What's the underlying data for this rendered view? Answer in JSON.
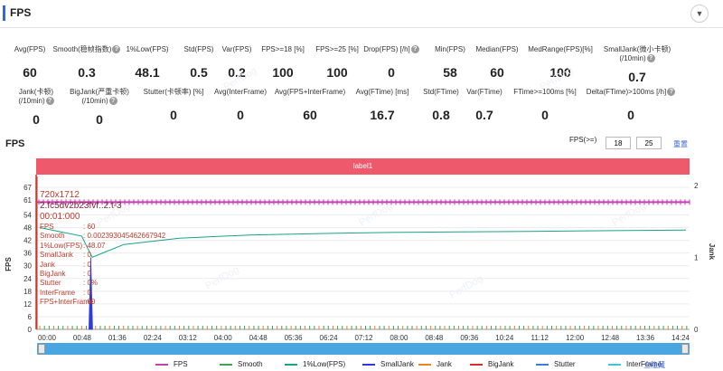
{
  "header": {
    "title": "FPS",
    "collapse_icon": "chevron-down-icon"
  },
  "metrics_row1": [
    {
      "label": "Avg(FPS)",
      "value": "60",
      "help": false
    },
    {
      "label": "Smooth(稳帧指数)",
      "value": "0.3",
      "help": true
    },
    {
      "label": "1%Low(FPS)",
      "value": "48.1",
      "help": false
    },
    {
      "label": "Std(FPS)",
      "value": "0.5",
      "help": false
    },
    {
      "label": "Var(FPS)",
      "value": "0.2",
      "help": false
    },
    {
      "label": "FPS>=18 [%]",
      "value": "100",
      "help": false
    },
    {
      "label": "FPS>=25 [%]",
      "value": "100",
      "help": false
    },
    {
      "label": "Drop(FPS) [/h]",
      "value": "0",
      "help": true
    },
    {
      "label": "Min(FPS)",
      "value": "58",
      "help": false
    },
    {
      "label": "Median(FPS)",
      "value": "60",
      "help": false
    },
    {
      "label": "MedRange(FPS)[%]",
      "value": "100",
      "help": false
    },
    {
      "label": "SmallJank(微小卡顿)",
      "label2": "(/10min)",
      "value": "0.7",
      "help": true
    }
  ],
  "metrics_row2": [
    {
      "label": "Jank(卡顿)",
      "label2": "(/10min)",
      "value": "0",
      "help": true
    },
    {
      "label": "BigJank(严重卡顿)",
      "label2": "(/10min)",
      "value": "0",
      "help": true
    },
    {
      "label": "Stutter(卡顿率) [%]",
      "value": "0",
      "help": false
    },
    {
      "label": "Avg(InterFrame)",
      "value": "0",
      "help": false
    },
    {
      "label": "Avg(FPS+InterFrame)",
      "value": "60",
      "help": false
    },
    {
      "label": "Avg(FTime) [ms]",
      "value": "16.7",
      "help": false
    },
    {
      "label": "Std(FTime)",
      "value": "0.8",
      "help": false
    },
    {
      "label": "Var(FTime)",
      "value": "0.7",
      "help": false
    },
    {
      "label": "FTime>=100ms [%]",
      "value": "0",
      "help": false
    },
    {
      "label": "Delta(FTime)>100ms [/h]",
      "value": "0",
      "help": true
    }
  ],
  "chart_section": {
    "title": "FPS",
    "threshold_label": "FPS(>=)",
    "threshold_low": "18",
    "threshold_high": "25",
    "reset_label": "重置"
  },
  "label_bar": "label1",
  "tooltip": {
    "resolution": "720x1712",
    "overlay": "2.fc5dv2b23fvf..2.t-3",
    "time": "00:01:000",
    "rows": [
      {
        "k": "FPS",
        "v": ": 60"
      },
      {
        "k": "Smooth",
        "v": ": 0.002393045462667942"
      },
      {
        "k": "1%Low(FPS)",
        "v": ": 48.07"
      },
      {
        "k": "SmallJank",
        "v": ": 0"
      },
      {
        "k": "Jank",
        "v": ": 0"
      },
      {
        "k": "BigJank",
        "v": ": 0"
      },
      {
        "k": "Stutter",
        "v": ": 0%"
      },
      {
        "k": "InterFrame",
        "v": ": 0"
      },
      {
        "k": "FPS+InterFrame",
        "v": ": 60"
      }
    ]
  },
  "watermark": "PerfDog",
  "legend": [
    {
      "name": "FPS",
      "color": "#c53fb0"
    },
    {
      "name": "Smooth",
      "color": "#3aa54d"
    },
    {
      "name": "1%Low(FPS)",
      "color": "#19a389"
    },
    {
      "name": "SmallJank",
      "color": "#2f3ad9"
    },
    {
      "name": "Jank",
      "color": "#f0821d"
    },
    {
      "name": "BigJank",
      "color": "#d93025"
    },
    {
      "name": "Stutter",
      "color": "#3b82d6"
    },
    {
      "name": "InterFrame",
      "color": "#3ec6d9"
    }
  ],
  "hide_all_label": "全隐藏",
  "chart_data": {
    "type": "line",
    "ylabel": "FPS",
    "y2label": "Jank",
    "ylim": [
      0,
      67
    ],
    "yticks": [
      0,
      6,
      12,
      18,
      24,
      30,
      36,
      42,
      48,
      54,
      61,
      67
    ],
    "y2ticks": [
      0,
      1,
      2
    ],
    "xticks": [
      "00:00",
      "00:48",
      "01:36",
      "02:24",
      "03:12",
      "04:00",
      "04:48",
      "05:36",
      "06:24",
      "07:12",
      "08:00",
      "08:48",
      "09:36",
      "10:24",
      "11:12",
      "12:00",
      "12:48",
      "13:36",
      "14:24"
    ],
    "xrange_seconds": [
      0,
      925
    ],
    "series": [
      {
        "name": "FPS",
        "value": 60
      },
      {
        "name": "1%Low(FPS)",
        "points": [
          [
            0,
            48
          ],
          [
            30,
            46
          ],
          [
            60,
            44
          ],
          [
            75,
            34
          ],
          [
            90,
            36
          ],
          [
            120,
            40
          ],
          [
            200,
            43
          ],
          [
            300,
            44.5
          ],
          [
            400,
            45.2
          ],
          [
            500,
            45.7
          ],
          [
            600,
            46
          ],
          [
            700,
            46.2
          ],
          [
            800,
            46.5
          ],
          [
            925,
            46.8
          ]
        ]
      },
      {
        "name": "SmallJank",
        "spike_at_seconds": 73,
        "spike_value": 1
      }
    ]
  }
}
